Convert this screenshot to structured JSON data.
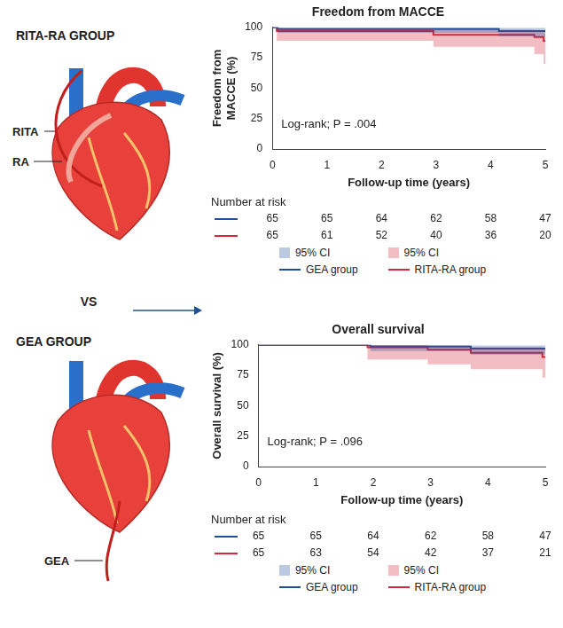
{
  "diagram": {
    "groups": [
      {
        "title": "RITA-RA GROUP",
        "labels": [
          "RITA",
          "RA"
        ]
      },
      {
        "title": "GEA GROUP",
        "labels": [
          "GEA"
        ]
      }
    ],
    "separator": "VS"
  },
  "chart_data": [
    {
      "type": "line",
      "title": "Freedom from MACCE",
      "x_label": "Follow-up time (years)",
      "y_label": [
        "Freedom from",
        "MACCE (%)"
      ],
      "xlim": [
        0,
        5
      ],
      "xticks": [
        0,
        1,
        2,
        3,
        4,
        5
      ],
      "ylim": [
        0,
        100
      ],
      "yticks": [
        0,
        25,
        50,
        75,
        100
      ],
      "grid": false,
      "legend": "bottom",
      "line_style": "step",
      "annotation": "Log-rank; P = .004",
      "ci_label": "95% CI",
      "at_risk_title": "Number at risk",
      "at_risk_x": [
        0,
        1,
        2,
        3,
        4,
        5
      ],
      "series": [
        {
          "name": "GEA group",
          "color": "#1f4f9a",
          "x": [
            0,
            0.1,
            4.15,
            5
          ],
          "values": [
            100,
            98.5,
            96.9,
            96.9
          ],
          "ci_lower": [
            100,
            95.5,
            92.5,
            92.5
          ],
          "ci_upper": [
            100,
            100,
            99.5,
            99.5
          ],
          "at_risk": [
            65,
            65,
            64,
            62,
            58,
            47
          ]
        },
        {
          "name": "RITA-RA group",
          "color": "#d7263d",
          "x": [
            0,
            0.08,
            2.95,
            4.8,
            4.97,
            5
          ],
          "values": [
            100,
            96.9,
            93.8,
            92,
            89,
            89
          ],
          "ci_lower": [
            100,
            89,
            84,
            78,
            70,
            70
          ],
          "ci_upper": [
            100,
            99.2,
            98,
            97.5,
            96,
            96
          ],
          "at_risk": [
            65,
            61,
            52,
            40,
            36,
            20
          ]
        }
      ]
    },
    {
      "type": "line",
      "title": "Overall survival",
      "x_label": "Follow-up time (years)",
      "y_label": [
        "Overall survival (%)"
      ],
      "xlim": [
        0,
        5
      ],
      "xticks": [
        0,
        1,
        2,
        3,
        4,
        5
      ],
      "ylim": [
        0,
        100
      ],
      "yticks": [
        0,
        25,
        50,
        75,
        100
      ],
      "grid": false,
      "legend": "bottom",
      "line_style": "step",
      "annotation": "Log-rank; P = .096",
      "ci_label": "95% CI",
      "at_risk_title": "Number at risk",
      "at_risk_x": [
        0,
        1,
        2,
        3,
        4,
        5
      ],
      "series": [
        {
          "name": "GEA group",
          "color": "#1f4f9a",
          "x": [
            0,
            1.95,
            3.7,
            5
          ],
          "values": [
            100,
            98.5,
            96.9,
            96.9
          ],
          "ci_lower": [
            100,
            95,
            92,
            92
          ],
          "ci_upper": [
            100,
            100,
            99.5,
            99.5
          ],
          "at_risk": [
            65,
            65,
            64,
            62,
            58,
            47
          ]
        },
        {
          "name": "RITA-RA group",
          "color": "#d7263d",
          "x": [
            0,
            1.9,
            2.95,
            3.7,
            4.95,
            5
          ],
          "values": [
            100,
            98,
            96,
            93.5,
            90,
            90
          ],
          "ci_lower": [
            100,
            88,
            84,
            80,
            73,
            73
          ],
          "ci_upper": [
            100,
            99.8,
            99,
            98,
            96.5,
            96.5
          ],
          "at_risk": [
            65,
            63,
            54,
            42,
            37,
            21
          ]
        }
      ]
    }
  ]
}
